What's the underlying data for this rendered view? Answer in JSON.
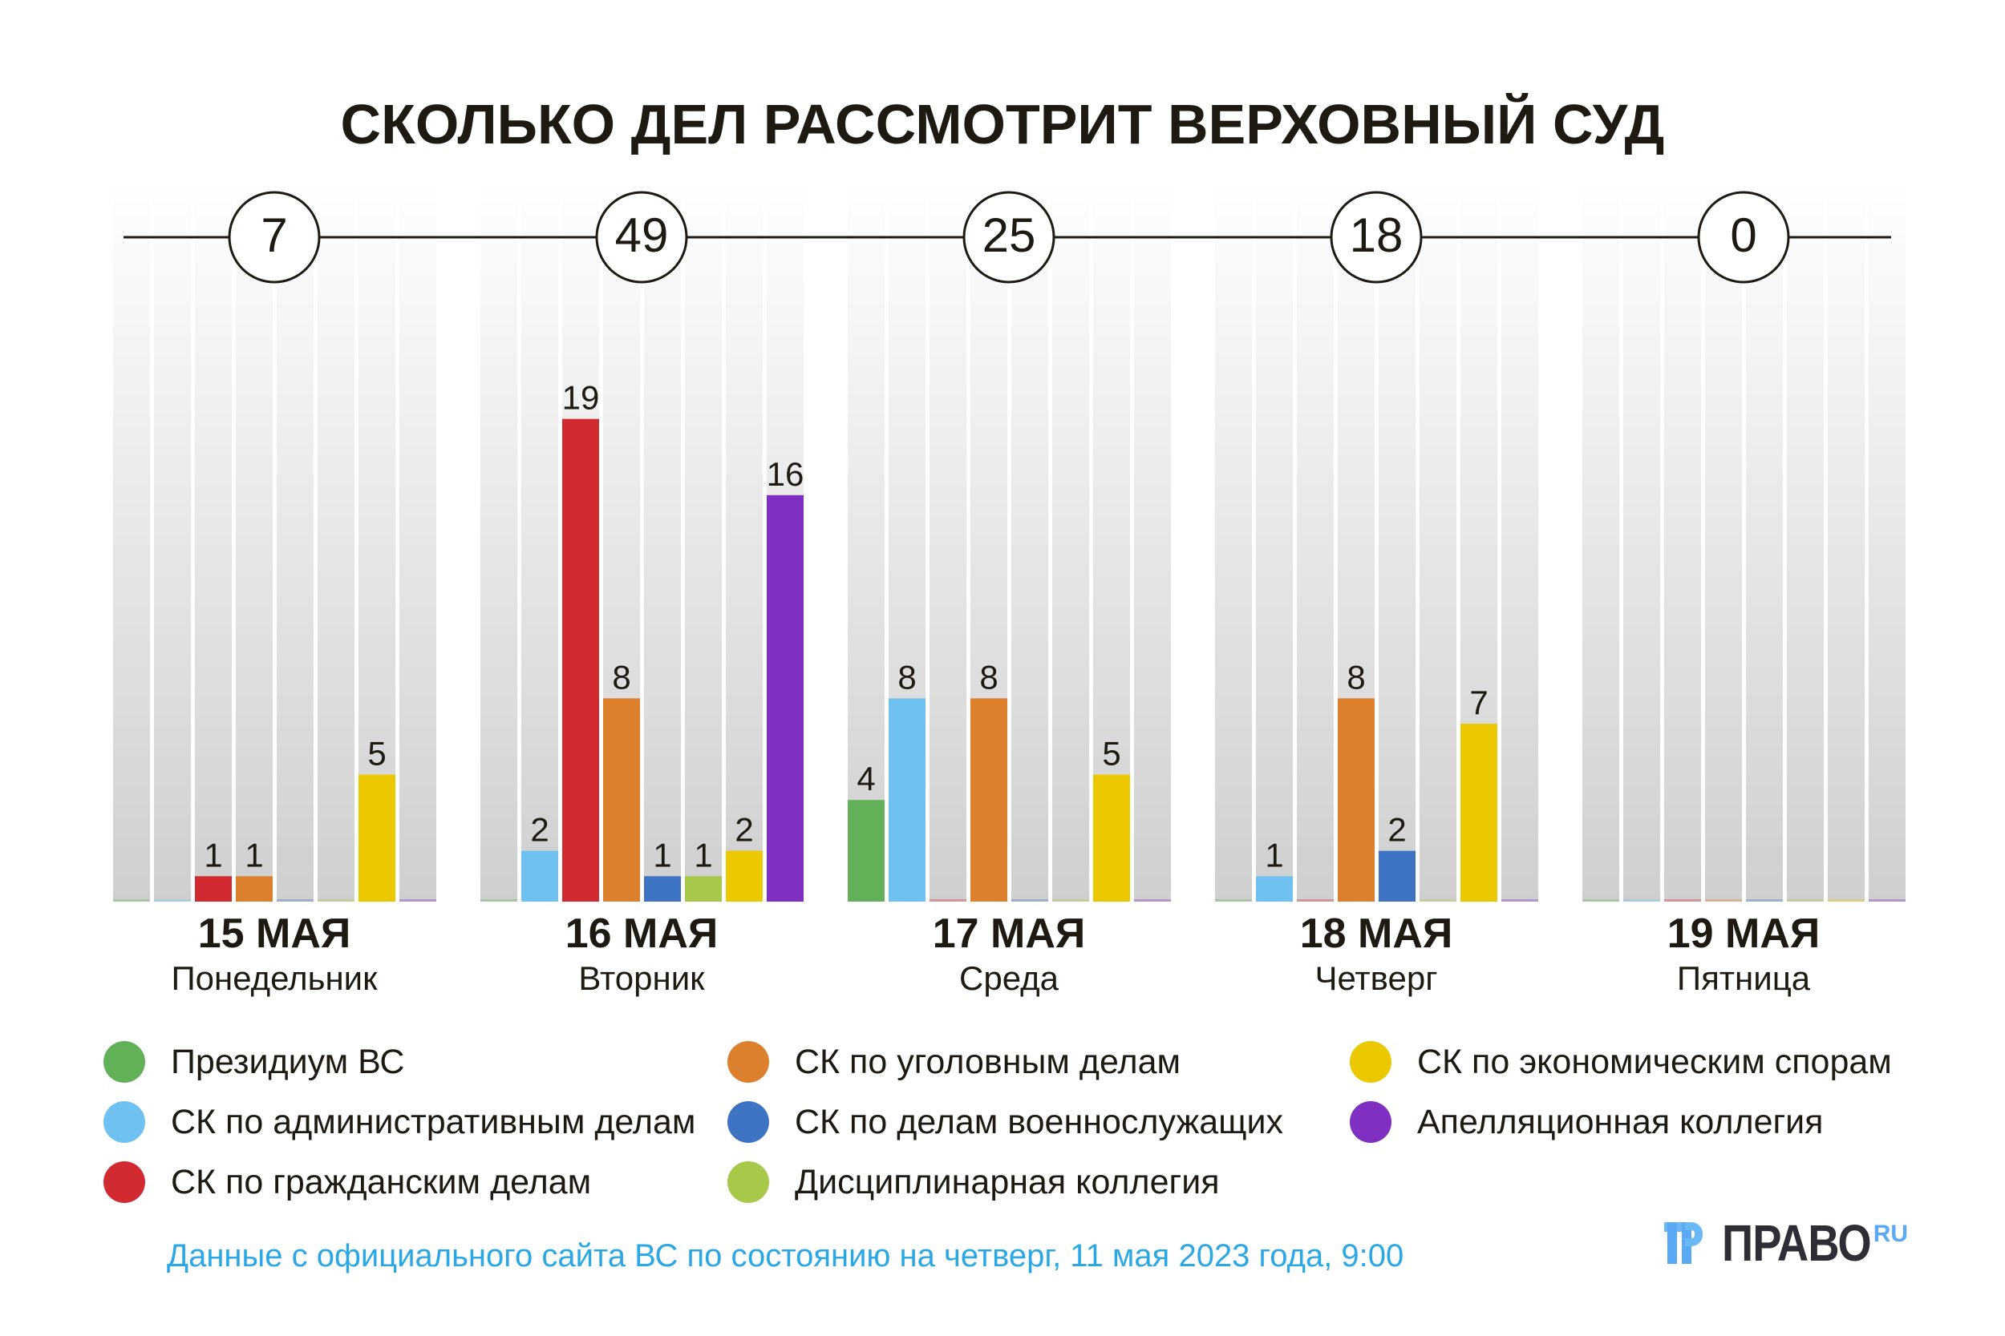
{
  "chart_data": {
    "type": "bar",
    "title": "СКОЛЬКО ДЕЛ РАССМОТРИТ ВЕРХОВНЫЙ СУД",
    "categories": [
      {
        "date": "15 МАЯ",
        "weekday": "Понедельник",
        "total": "7"
      },
      {
        "date": "16 МАЯ",
        "weekday": "Вторник",
        "total": "49"
      },
      {
        "date": "17 МАЯ",
        "weekday": "Среда",
        "total": "25"
      },
      {
        "date": "18 МАЯ",
        "weekday": "Четверг",
        "total": "18"
      },
      {
        "date": "19 МАЯ",
        "weekday": "Пятница",
        "total": "0"
      }
    ],
    "series": [
      {
        "name": "Президиум ВС",
        "color": "#62b058",
        "values": [
          0,
          0,
          4,
          0,
          0
        ]
      },
      {
        "name": "СК по административным делам",
        "color": "#6ec1f0",
        "values": [
          0,
          2,
          8,
          1,
          0
        ]
      },
      {
        "name": "СК по гражданским делам",
        "color": "#d12a31",
        "values": [
          1,
          19,
          0,
          0,
          0
        ]
      },
      {
        "name": "СК по уголовным делам",
        "color": "#dd802d",
        "values": [
          1,
          8,
          8,
          8,
          0
        ]
      },
      {
        "name": "СК по делам военнослужащих",
        "color": "#3e72c2",
        "values": [
          0,
          1,
          0,
          2,
          0
        ]
      },
      {
        "name": "Дисциплинарная коллегия",
        "color": "#a7c94a",
        "values": [
          0,
          1,
          0,
          0,
          0
        ]
      },
      {
        "name": "СК по экономическим спорам",
        "color": "#ebc800",
        "values": [
          5,
          2,
          5,
          7,
          0
        ]
      },
      {
        "name": "Апелляционная коллегия",
        "color": "#7f2fc2",
        "values": [
          0,
          16,
          0,
          0,
          0
        ]
      }
    ],
    "ylim": [
      0,
      19
    ],
    "legend_position": "bottom"
  },
  "footer": "Данные с официального сайта ВС по состоянию на четверг, 11 мая 2023 года, 9:00",
  "logo": {
    "text": "ПРАВО",
    "suffix": "RU"
  }
}
